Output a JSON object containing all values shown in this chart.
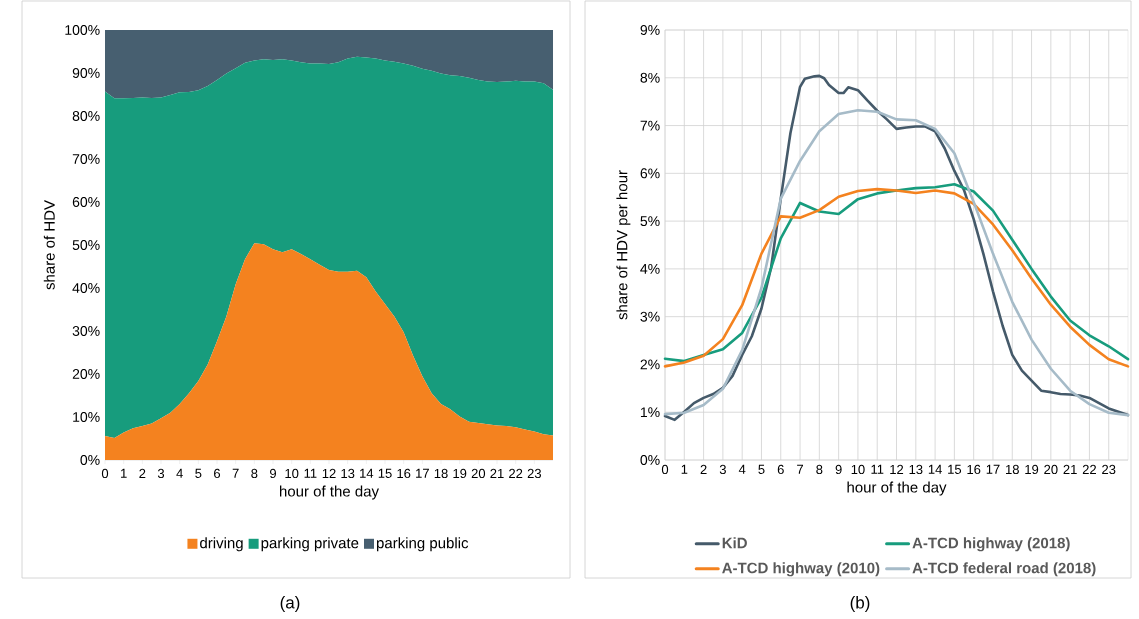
{
  "chart_data": [
    {
      "type": "area",
      "stacked": true,
      "xlabel": "hour of the day",
      "ylabel": "share of HDV",
      "legend": "bottom",
      "annotations": [
        "(a)"
      ],
      "x": [
        0,
        0.5,
        1,
        1.5,
        2,
        2.5,
        3,
        3.5,
        4,
        4.5,
        5,
        5.5,
        6,
        6.5,
        7,
        7.5,
        8,
        8.5,
        9,
        9.5,
        10,
        10.5,
        11,
        11.5,
        12,
        12.5,
        13,
        13.5,
        14,
        14.5,
        15,
        15.5,
        16,
        16.5,
        17,
        17.5,
        18,
        18.5,
        19,
        19.5,
        20,
        20.5,
        21,
        21.5,
        22,
        22.5,
        23,
        23.5,
        24
      ],
      "xlim": [
        0,
        24
      ],
      "xticks": [
        0,
        1,
        2,
        3,
        4,
        5,
        6,
        7,
        8,
        9,
        10,
        11,
        12,
        13,
        14,
        15,
        16,
        17,
        18,
        19,
        20,
        21,
        22,
        23
      ],
      "ylim": [
        0,
        100
      ],
      "yticks": [
        {
          "value": 0,
          "label": "0%"
        },
        {
          "value": 10,
          "label": "10%"
        },
        {
          "value": 20,
          "label": "20%"
        },
        {
          "value": 30,
          "label": "30%"
        },
        {
          "value": 40,
          "label": "40%"
        },
        {
          "value": 50,
          "label": "50%"
        },
        {
          "value": 60,
          "label": "60%"
        },
        {
          "value": 70,
          "label": "70%"
        },
        {
          "value": 80,
          "label": "80%"
        },
        {
          "value": 90,
          "label": "90%"
        },
        {
          "value": 100,
          "label": "100%"
        }
      ],
      "series": [
        {
          "name": "driving",
          "color": "#f4821f",
          "values": [
            5.6,
            5.1,
            6.4,
            7.4,
            7.9,
            8.5,
            9.7,
            11.0,
            13.0,
            15.5,
            18.4,
            22.2,
            27.6,
            33.4,
            40.9,
            46.7,
            50.4,
            50.2,
            49.0,
            48.3,
            49.0,
            47.9,
            46.7,
            45.4,
            44.2,
            43.8,
            43.8,
            44.0,
            42.5,
            39.2,
            36.3,
            33.4,
            29.7,
            24.3,
            19.5,
            15.5,
            13.0,
            11.8,
            10.1,
            8.9,
            8.6,
            8.3,
            8.0,
            7.9,
            7.6,
            7.1,
            6.6,
            6.0,
            5.7
          ]
        },
        {
          "name": "parking private",
          "color": "#179c7d",
          "values": [
            80.1,
            79.0,
            77.7,
            76.8,
            76.4,
            75.7,
            74.6,
            73.9,
            72.5,
            70.1,
            67.6,
            64.8,
            60.8,
            56.5,
            50.2,
            45.7,
            42.5,
            43.0,
            44.0,
            44.9,
            43.9,
            44.6,
            45.5,
            46.8,
            47.9,
            48.7,
            49.6,
            49.8,
            51.1,
            54.2,
            56.6,
            59.2,
            62.5,
            67.4,
            71.5,
            75.0,
            76.9,
            77.7,
            79.2,
            80.0,
            79.8,
            79.7,
            79.9,
            80.1,
            80.6,
            80.9,
            81.4,
            81.6,
            80.4
          ]
        },
        {
          "name": "parking public",
          "color": "#475f70",
          "values": [
            14.3,
            15.9,
            15.9,
            15.8,
            15.7,
            15.8,
            15.7,
            15.1,
            14.5,
            14.4,
            14.0,
            13.0,
            11.6,
            10.1,
            8.9,
            7.6,
            7.1,
            6.8,
            7.0,
            6.8,
            7.1,
            7.5,
            7.8,
            7.8,
            7.9,
            7.5,
            6.6,
            6.2,
            6.4,
            6.6,
            7.1,
            7.4,
            7.8,
            8.3,
            9.0,
            9.5,
            10.1,
            10.5,
            10.7,
            11.1,
            11.6,
            12.0,
            12.1,
            12.0,
            11.8,
            12.0,
            12.0,
            12.4,
            13.9
          ]
        }
      ]
    },
    {
      "type": "line",
      "xlabel": "hour of the day",
      "ylabel": "share of HDV per hour",
      "legend": "bottom",
      "grid": true,
      "annotations": [
        "(b)"
      ],
      "x": [
        0,
        1,
        2,
        3,
        4,
        5,
        6,
        7,
        8,
        9,
        10,
        11,
        12,
        13,
        14,
        15,
        16,
        17,
        18,
        19,
        20,
        21,
        22,
        23,
        24
      ],
      "xlim": [
        0,
        24
      ],
      "xticks": [
        0,
        1,
        2,
        3,
        4,
        5,
        6,
        7,
        8,
        9,
        10,
        11,
        12,
        13,
        14,
        15,
        16,
        17,
        18,
        19,
        20,
        21,
        22,
        23
      ],
      "ylim": [
        0,
        9
      ],
      "yticks": [
        {
          "value": 0,
          "label": "0%"
        },
        {
          "value": 1,
          "label": "1%"
        },
        {
          "value": 2,
          "label": "2%"
        },
        {
          "value": 3,
          "label": "3%"
        },
        {
          "value": 4,
          "label": "4%"
        },
        {
          "value": 5,
          "label": "5%"
        },
        {
          "value": 6,
          "label": "6%"
        },
        {
          "value": 7,
          "label": "7%"
        },
        {
          "value": 8,
          "label": "8%"
        },
        {
          "value": 9,
          "label": "9%"
        }
      ],
      "series": [
        {
          "name": "KiD",
          "color": "#455a6a",
          "x": [
            0,
            0.5,
            1,
            1.5,
            2,
            2.5,
            3,
            3.5,
            4,
            4.5,
            5,
            5.5,
            6,
            6.5,
            7,
            7.25,
            7.75,
            8,
            8.25,
            8.5,
            9,
            9.25,
            9.5,
            10,
            10.5,
            11,
            11.5,
            12,
            12.5,
            13,
            13.5,
            14,
            14.5,
            15,
            15.5,
            16,
            16.5,
            17,
            17.5,
            18,
            18.5,
            19,
            19.5,
            20,
            20.5,
            21,
            21.5,
            22,
            22.5,
            23,
            23.5,
            24
          ],
          "values": [
            0.92,
            0.84,
            1.01,
            1.19,
            1.3,
            1.38,
            1.51,
            1.76,
            2.2,
            2.59,
            3.17,
            4.03,
            5.47,
            6.84,
            7.81,
            7.98,
            8.03,
            8.04,
            7.99,
            7.85,
            7.68,
            7.68,
            7.8,
            7.74,
            7.52,
            7.31,
            7.13,
            6.93,
            6.96,
            6.98,
            6.98,
            6.88,
            6.52,
            6.05,
            5.65,
            5.04,
            4.32,
            3.53,
            2.81,
            2.2,
            1.87,
            1.66,
            1.45,
            1.42,
            1.38,
            1.37,
            1.35,
            1.3,
            1.19,
            1.08,
            1.01,
            0.94
          ]
        },
        {
          "name": "A-TCD highway (2018)",
          "color": "#179c7d",
          "values": [
            2.12,
            2.07,
            2.2,
            2.32,
            2.66,
            3.4,
            4.64,
            5.38,
            5.2,
            5.15,
            5.46,
            5.58,
            5.64,
            5.69,
            5.71,
            5.77,
            5.62,
            5.22,
            4.61,
            4.0,
            3.42,
            2.92,
            2.61,
            2.38,
            2.11
          ]
        },
        {
          "name": "A-TCD highway (2010)",
          "color": "#f4821f",
          "values": [
            1.96,
            2.04,
            2.18,
            2.53,
            3.24,
            4.32,
            5.1,
            5.07,
            5.23,
            5.51,
            5.63,
            5.67,
            5.64,
            5.59,
            5.64,
            5.58,
            5.36,
            4.93,
            4.39,
            3.8,
            3.25,
            2.79,
            2.41,
            2.11,
            1.96
          ]
        },
        {
          "name": "A-TCD federal road (2018)",
          "color": "#a6bbc8",
          "values": [
            0.96,
            0.99,
            1.15,
            1.49,
            2.3,
            3.6,
            5.47,
            6.26,
            6.88,
            7.24,
            7.32,
            7.29,
            7.13,
            7.11,
            6.93,
            6.42,
            5.4,
            4.32,
            3.31,
            2.52,
            1.91,
            1.45,
            1.17,
            0.99,
            0.94
          ]
        }
      ]
    }
  ]
}
